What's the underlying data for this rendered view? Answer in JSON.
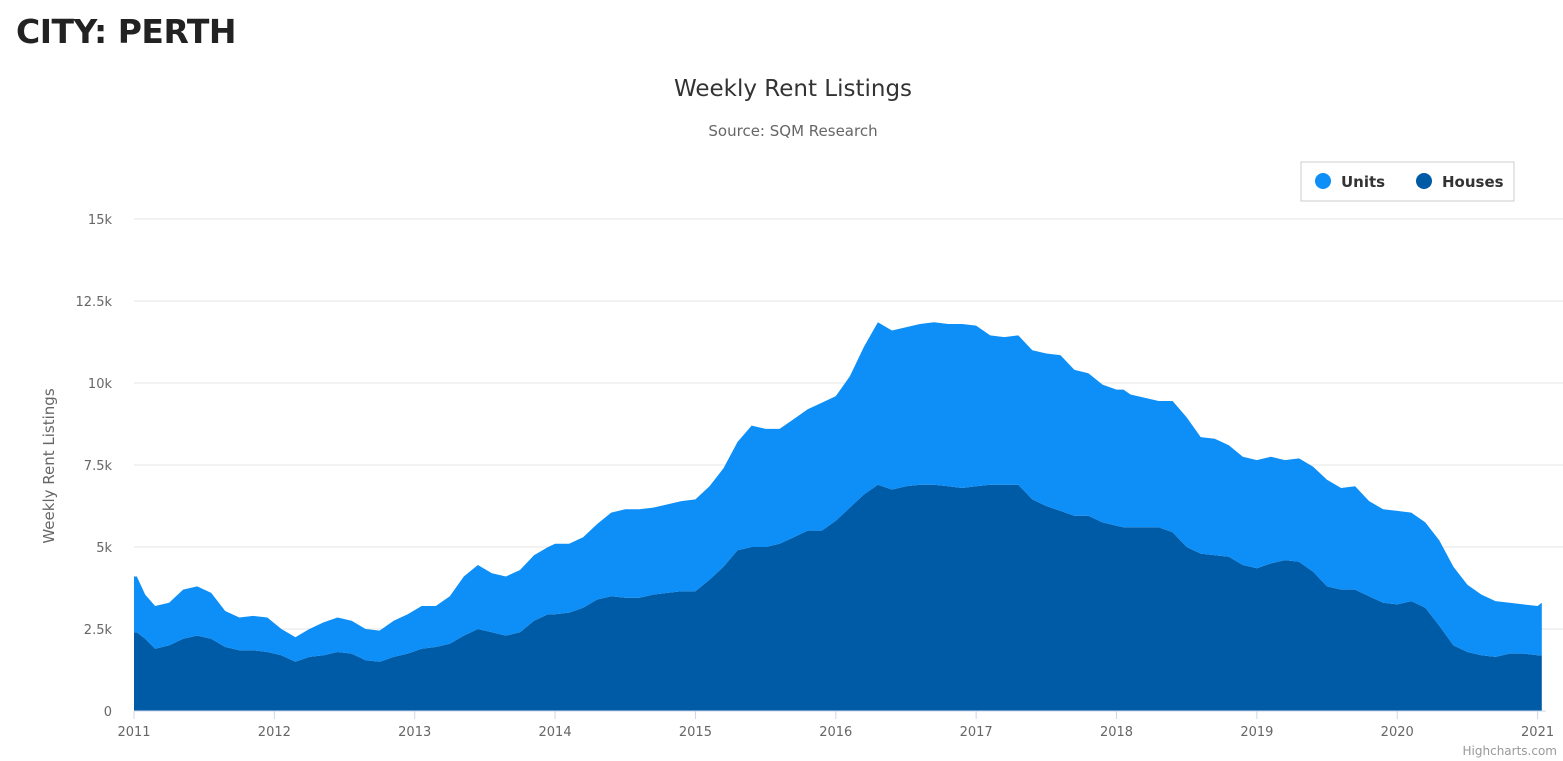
{
  "page": {
    "heading": "CITY: PERTH"
  },
  "credits": "Highcharts.com",
  "colors": {
    "units": "#0d8ff7",
    "houses": "#005ba6",
    "grid": "#e6e6e6"
  },
  "chart_data": {
    "type": "area",
    "stacking": "normal",
    "title": "Weekly Rent Listings",
    "subtitle": "Source: SQM Research",
    "xlabel": "",
    "ylabel": "Weekly Rent Listings",
    "xlim": [
      2011.0,
      2021.06
    ],
    "ylim": [
      0,
      15000
    ],
    "y_ticks": [
      {
        "value": 0,
        "label": "0"
      },
      {
        "value": 2500,
        "label": "2.5k"
      },
      {
        "value": 5000,
        "label": "5k"
      },
      {
        "value": 7500,
        "label": "7.5k"
      },
      {
        "value": 10000,
        "label": "10k"
      },
      {
        "value": 12500,
        "label": "12.5k"
      },
      {
        "value": 15000,
        "label": "15k"
      }
    ],
    "x_ticks": [
      "2011",
      "2012",
      "2013",
      "2014",
      "2015",
      "2016",
      "2017",
      "2018",
      "2019",
      "2020",
      "2021"
    ],
    "legend": {
      "position": "top-right"
    },
    "series": [
      {
        "name": "Units",
        "color_key": "units",
        "x": [
          2011.0,
          2011.02,
          2011.08,
          2011.15,
          2011.25,
          2011.35,
          2011.45,
          2011.55,
          2011.65,
          2011.75,
          2011.85,
          2011.95,
          2012.05,
          2012.15,
          2012.25,
          2012.35,
          2012.45,
          2012.55,
          2012.65,
          2012.75,
          2012.85,
          2012.95,
          2013.05,
          2013.15,
          2013.25,
          2013.35,
          2013.45,
          2013.55,
          2013.65,
          2013.75,
          2013.85,
          2013.95,
          2014.0,
          2014.1,
          2014.2,
          2014.3,
          2014.4,
          2014.5,
          2014.6,
          2014.7,
          2014.8,
          2014.9,
          2015.0,
          2015.1,
          2015.2,
          2015.3,
          2015.4,
          2015.5,
          2015.6,
          2015.7,
          2015.8,
          2015.9,
          2016.0,
          2016.1,
          2016.2,
          2016.3,
          2016.4,
          2016.5,
          2016.6,
          2016.7,
          2016.8,
          2016.9,
          2017.0,
          2017.1,
          2017.2,
          2017.3,
          2017.4,
          2017.5,
          2017.6,
          2017.7,
          2017.8,
          2017.9,
          2018.0,
          2018.05,
          2018.1,
          2018.2,
          2018.3,
          2018.4,
          2018.5,
          2018.6,
          2018.7,
          2018.8,
          2018.9,
          2019.0,
          2019.1,
          2019.2,
          2019.3,
          2019.4,
          2019.5,
          2019.6,
          2019.7,
          2019.8,
          2019.9,
          2020.0,
          2020.1,
          2020.2,
          2020.3,
          2020.4,
          2020.5,
          2020.6,
          2020.7,
          2020.8,
          2020.9,
          2021.0,
          2021.03
        ],
        "values": [
          1700,
          1700,
          1350,
          1300,
          1300,
          1500,
          1500,
          1400,
          1100,
          1000,
          1050,
          1050,
          800,
          750,
          850,
          1000,
          1050,
          1000,
          950,
          950,
          1100,
          1200,
          1300,
          1250,
          1450,
          1800,
          1950,
          1800,
          1800,
          1900,
          2000,
          2050,
          2150,
          2100,
          2150,
          2300,
          2550,
          2700,
          2700,
          2650,
          2700,
          2750,
          2800,
          2850,
          3000,
          3300,
          3700,
          3600,
          3500,
          3600,
          3700,
          3900,
          3800,
          4000,
          4500,
          4950,
          4850,
          4850,
          4900,
          4950,
          4950,
          5000,
          4900,
          4550,
          4500,
          4550,
          4550,
          4650,
          4750,
          4450,
          4350,
          4200,
          4150,
          4200,
          4050,
          3950,
          3850,
          4000,
          3950,
          3550,
          3550,
          3400,
          3300,
          3300,
          3250,
          3050,
          3150,
          3200,
          3250,
          3100,
          3150,
          2900,
          2850,
          2850,
          2700,
          2600,
          2600,
          2400,
          2050,
          1850,
          1700,
          1550,
          1500,
          1500,
          1600
        ]
      },
      {
        "name": "Houses",
        "color_key": "houses",
        "x": [
          2011.0,
          2011.02,
          2011.08,
          2011.15,
          2011.25,
          2011.35,
          2011.45,
          2011.55,
          2011.65,
          2011.75,
          2011.85,
          2011.95,
          2012.05,
          2012.15,
          2012.25,
          2012.35,
          2012.45,
          2012.55,
          2012.65,
          2012.75,
          2012.85,
          2012.95,
          2013.05,
          2013.15,
          2013.25,
          2013.35,
          2013.45,
          2013.55,
          2013.65,
          2013.75,
          2013.85,
          2013.95,
          2014.0,
          2014.1,
          2014.2,
          2014.3,
          2014.4,
          2014.5,
          2014.6,
          2014.7,
          2014.8,
          2014.9,
          2015.0,
          2015.1,
          2015.2,
          2015.3,
          2015.4,
          2015.5,
          2015.6,
          2015.7,
          2015.8,
          2015.9,
          2016.0,
          2016.1,
          2016.2,
          2016.3,
          2016.4,
          2016.5,
          2016.6,
          2016.7,
          2016.8,
          2016.9,
          2017.0,
          2017.1,
          2017.2,
          2017.3,
          2017.4,
          2017.5,
          2017.6,
          2017.7,
          2017.8,
          2017.9,
          2018.0,
          2018.05,
          2018.1,
          2018.2,
          2018.3,
          2018.4,
          2018.5,
          2018.6,
          2018.7,
          2018.8,
          2018.9,
          2019.0,
          2019.1,
          2019.2,
          2019.3,
          2019.4,
          2019.5,
          2019.6,
          2019.7,
          2019.8,
          2019.9,
          2020.0,
          2020.1,
          2020.2,
          2020.3,
          2020.4,
          2020.5,
          2020.6,
          2020.7,
          2020.8,
          2020.9,
          2021.0,
          2021.03
        ],
        "values": [
          2400,
          2400,
          2200,
          1900,
          2000,
          2200,
          2300,
          2200,
          1950,
          1850,
          1850,
          1800,
          1700,
          1500,
          1650,
          1700,
          1800,
          1750,
          1550,
          1500,
          1650,
          1750,
          1900,
          1950,
          2050,
          2300,
          2500,
          2400,
          2300,
          2400,
          2750,
          2950,
          2950,
          3000,
          3150,
          3400,
          3500,
          3450,
          3450,
          3550,
          3600,
          3650,
          3650,
          4000,
          4400,
          4900,
          5000,
          5000,
          5100,
          5300,
          5500,
          5500,
          5800,
          6200,
          6600,
          6900,
          6750,
          6850,
          6900,
          6900,
          6850,
          6800,
          6850,
          6900,
          6900,
          6900,
          6450,
          6250,
          6100,
          5950,
          5950,
          5750,
          5650,
          5600,
          5600,
          5600,
          5600,
          5450,
          5000,
          4800,
          4750,
          4700,
          4450,
          4350,
          4500,
          4600,
          4550,
          4250,
          3800,
          3700,
          3700,
          3500,
          3300,
          3250,
          3350,
          3150,
          2600,
          2000,
          1800,
          1700,
          1650,
          1750,
          1750,
          1700,
          1700
        ]
      }
    ]
  }
}
